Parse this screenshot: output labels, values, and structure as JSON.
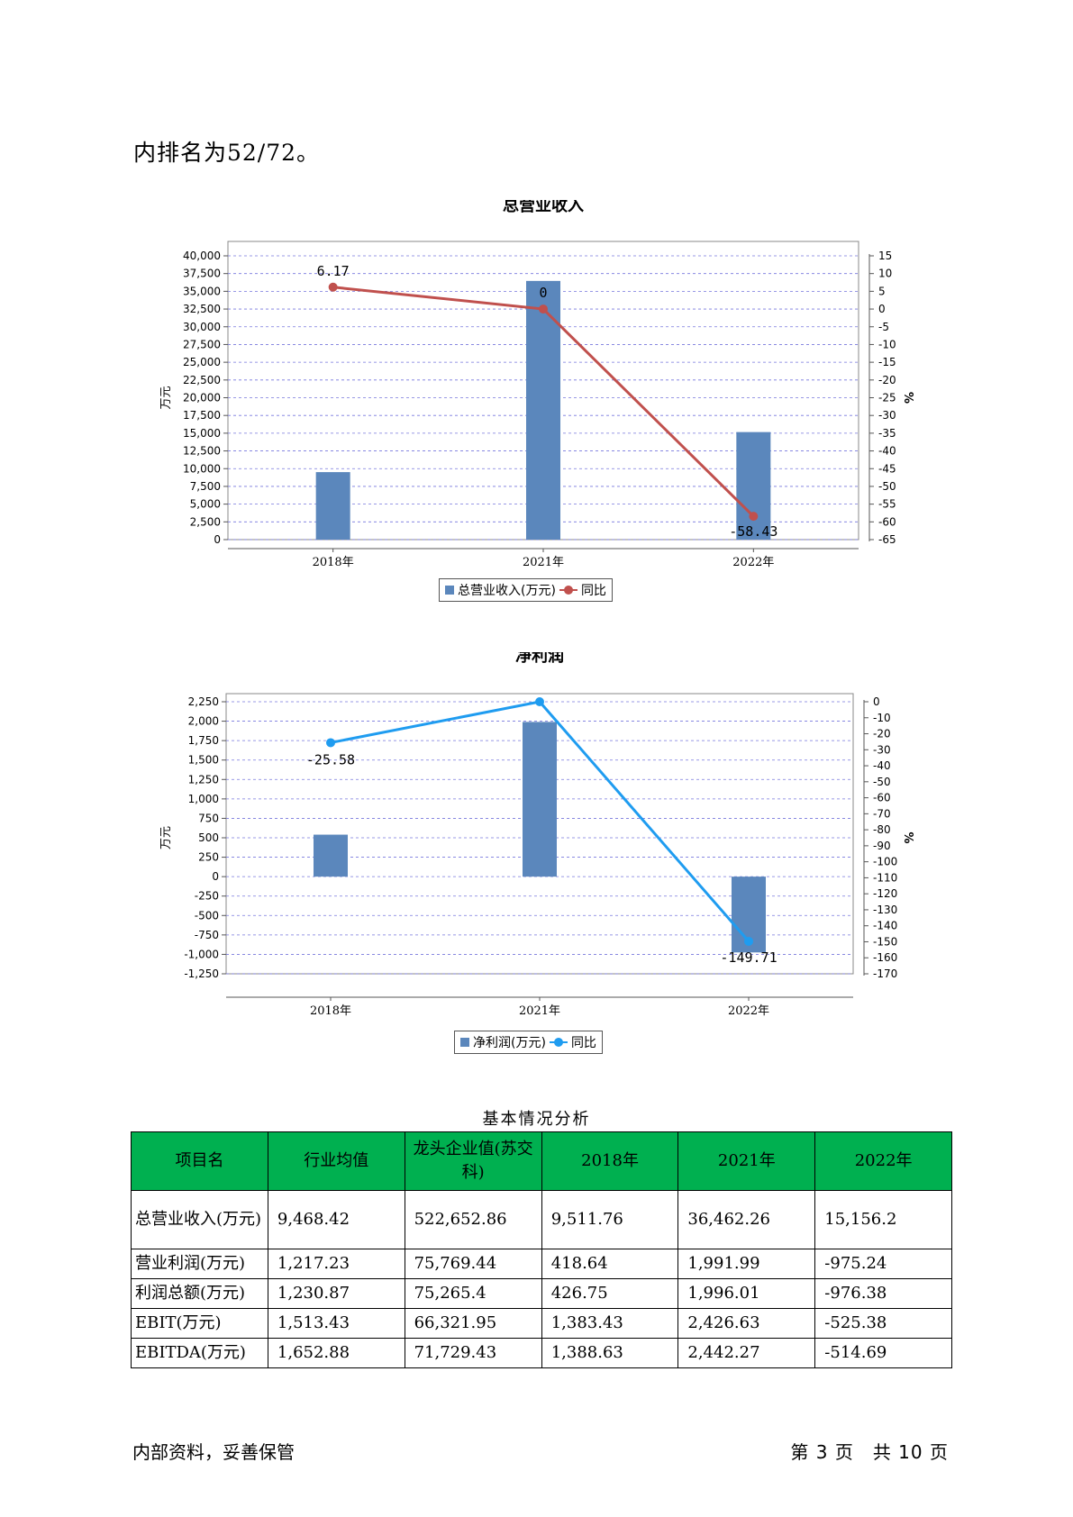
{
  "intro_text": "内排名为52/72。",
  "chart_data": [
    {
      "type": "bar",
      "title": "总营业收入",
      "categories": [
        "2018年",
        "2021年",
        "2022年"
      ],
      "series": [
        {
          "name": "总营业收入(万元)",
          "axis": "left",
          "type": "bar",
          "values": [
            9511.76,
            36462.26,
            15156.2
          ],
          "color": "#5b87bc"
        },
        {
          "name": "同比",
          "axis": "right",
          "type": "line",
          "values": [
            6.17,
            0,
            -58.43
          ],
          "color": "#c0504d"
        }
      ],
      "data_labels": [
        "6.17",
        "0",
        "-58.43"
      ],
      "ylabel": "万元",
      "y2label": "%",
      "ylim": [
        0,
        40000
      ],
      "y_ticks": [
        "40,000",
        "37,500",
        "35,000",
        "32,500",
        "30,000",
        "27,500",
        "25,000",
        "22,500",
        "20,000",
        "17,500",
        "15,000",
        "12,500",
        "10,000",
        "7,500",
        "5,000",
        "2,500",
        "0"
      ],
      "y2lim": [
        -65,
        15
      ],
      "y2_ticks": [
        "15",
        "10",
        "5",
        "0",
        "-5",
        "-10",
        "-15",
        "-20",
        "-25",
        "-30",
        "-35",
        "-40",
        "-45",
        "-50",
        "-55",
        "-60",
        "-65"
      ],
      "legend_position": "bottom",
      "grid": true
    },
    {
      "type": "bar",
      "title": "净利润",
      "categories": [
        "2018年",
        "2021年",
        "2022年"
      ],
      "series": [
        {
          "name": "净利润(万元)",
          "axis": "left",
          "type": "bar",
          "values": [
            540,
            1990,
            -975
          ],
          "color": "#5b87bc"
        },
        {
          "name": "同比",
          "axis": "right",
          "type": "line",
          "values": [
            -25.58,
            0,
            -149.71
          ],
          "color": "#1f9cf0"
        }
      ],
      "data_labels": [
        "-25.58",
        "",
        "-149.71"
      ],
      "ylabel": "万元",
      "y2label": "%",
      "ylim": [
        -1250,
        2250
      ],
      "y_ticks": [
        "2,250",
        "2,000",
        "1,750",
        "1,500",
        "1,250",
        "1,000",
        "750",
        "500",
        "250",
        "0",
        "-250",
        "-500",
        "-750",
        "-1,000",
        "-1,250"
      ],
      "y2lim": [
        -170,
        0
      ],
      "y2_ticks": [
        "0",
        "-10",
        "-20",
        "-30",
        "-40",
        "-50",
        "-60",
        "-70",
        "-80",
        "-90",
        "-100",
        "-110",
        "-120",
        "-130",
        "-140",
        "-150",
        "-160",
        "-170"
      ],
      "legend_position": "bottom",
      "grid": true
    }
  ],
  "table": {
    "title": "基本情况分析",
    "headers": [
      "项目名",
      "行业均值",
      "龙头企业值(苏交科)",
      "2018年",
      "2021年",
      "2022年"
    ],
    "rows": [
      [
        "总营业收入(万元)",
        "9,468.42",
        "522,652.86",
        "9,511.76",
        "36,462.26",
        "15,156.2"
      ],
      [
        "营业利润(万元)",
        "1,217.23",
        "75,769.44",
        "418.64",
        "1,991.99",
        "-975.24"
      ],
      [
        "利润总额(万元)",
        "1,230.87",
        "75,265.4",
        "426.75",
        "1,996.01",
        "-976.38"
      ],
      [
        "EBIT(万元)",
        "1,513.43",
        "66,321.95",
        "1,383.43",
        "2,426.63",
        "-525.38"
      ],
      [
        "EBITDA(万元)",
        "1,652.88",
        "71,729.43",
        "1,388.63",
        "2,442.27",
        "-514.69"
      ]
    ],
    "header_color": "#00b050"
  },
  "footer": {
    "left": "内部资料，妥善保管",
    "right": "第 3 页　共 10 页"
  }
}
